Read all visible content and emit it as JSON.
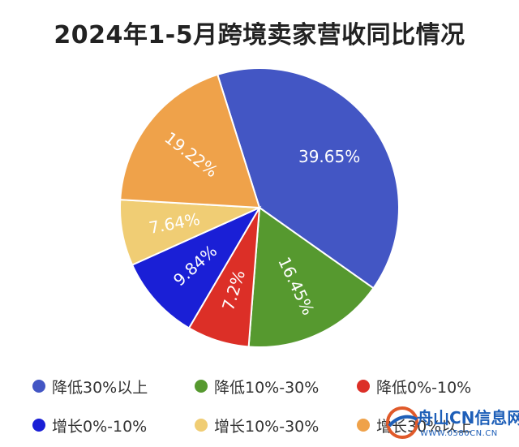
{
  "chart_data": {
    "type": "pie",
    "title": "2024年1-5月跨境卖家营收同比情况",
    "slices": [
      {
        "label": "降低30%以上",
        "value": 39.65,
        "value_label": "39.65%",
        "color": "#4356C4"
      },
      {
        "label": "降低10%-30%",
        "value": 16.45,
        "value_label": "16.45%",
        "color": "#56992F"
      },
      {
        "label": "降低0%-10%",
        "value": 7.2,
        "value_label": "7.2%",
        "color": "#DC2F27"
      },
      {
        "label": "增长0%-10%",
        "value": 9.84,
        "value_label": "9.84%",
        "color": "#1A1FD6"
      },
      {
        "label": "增长10%-30%",
        "value": 7.64,
        "value_label": "7.64%",
        "color": "#F0CD74"
      },
      {
        "label": "增长30%以上",
        "value": 19.22,
        "value_label": "19.22%",
        "color": "#EFA24A"
      }
    ],
    "legend_position": "bottom"
  },
  "legend": [
    {
      "label": "降低30%以上",
      "color": "#4356C4"
    },
    {
      "label": "降低10%-30%",
      "color": "#56992F"
    },
    {
      "label": "降低0%-10%",
      "color": "#DC2F27"
    },
    {
      "label": "增长0%-10%",
      "color": "#1A1FD6"
    },
    {
      "label": "增长10%-30%",
      "color": "#F0CD74"
    },
    {
      "label": "增长30%以上",
      "color": "#EFA24A"
    }
  ],
  "watermark": {
    "title": "舟山CN信息网",
    "url": "WWW.0580CN.CN"
  }
}
